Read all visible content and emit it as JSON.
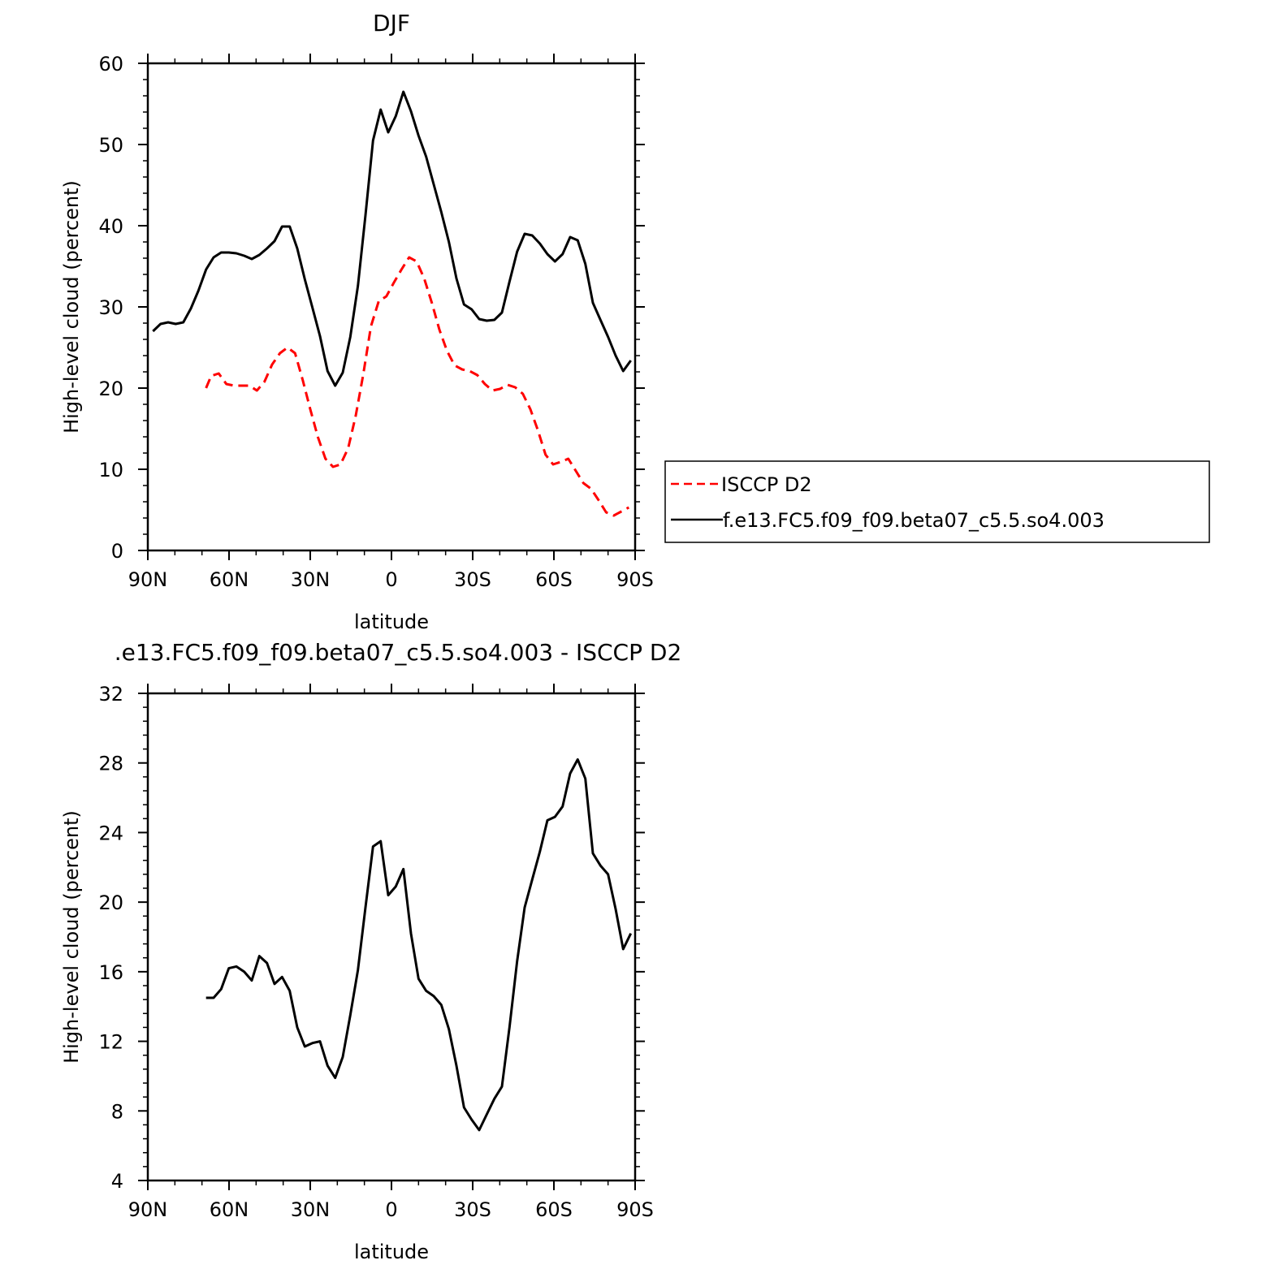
{
  "chart_data": [
    {
      "type": "line",
      "title": "DJF",
      "xlabel": "latitude",
      "ylabel": "High-level cloud (percent)",
      "xlim": [
        -90,
        90
      ],
      "ylim": [
        0,
        60
      ],
      "x_ticks": [
        {
          "value": -90,
          "label": "90N"
        },
        {
          "value": -60,
          "label": "60N"
        },
        {
          "value": -30,
          "label": "30N"
        },
        {
          "value": 0,
          "label": "0"
        },
        {
          "value": 30,
          "label": "30S"
        },
        {
          "value": 60,
          "label": "60S"
        },
        {
          "value": 90,
          "label": "90S"
        }
      ],
      "y_ticks": [
        {
          "value": 0,
          "label": "0"
        },
        {
          "value": 10,
          "label": "10"
        },
        {
          "value": 20,
          "label": "20"
        },
        {
          "value": 30,
          "label": "30"
        },
        {
          "value": 40,
          "label": "40"
        },
        {
          "value": 50,
          "label": "50"
        },
        {
          "value": 60,
          "label": "60"
        }
      ],
      "grid": false,
      "legend_position": "right",
      "series": [
        {
          "name": "ISCCP D2",
          "color": "#ff0000",
          "dash": true,
          "x": [
            -68.5,
            -66.6,
            -63.8,
            -61.0,
            -58.1,
            -55.3,
            -52.5,
            -49.7,
            -46.9,
            -44.1,
            -41.2,
            -38.4,
            -35.6,
            -32.8,
            -30.0,
            -27.2,
            -24.4,
            -21.6,
            -18.8,
            -16.0,
            -13.2,
            -10.4,
            -7.6,
            -4.7,
            -1.9,
            0.9,
            3.7,
            6.5,
            9.3,
            12.1,
            14.9,
            17.7,
            20.5,
            23.3,
            26.1,
            28.9,
            31.7,
            34.5,
            37.3,
            40.1,
            42.9,
            45.7,
            48.5,
            51.3,
            54.1,
            56.9,
            59.7,
            62.5,
            65.3,
            68.1,
            70.9,
            73.7,
            76.5,
            79.3,
            82.1,
            84.9,
            87.7
          ],
          "y": [
            20.0,
            21.5,
            21.8,
            20.5,
            20.3,
            20.3,
            20.3,
            19.7,
            20.8,
            22.9,
            24.3,
            25.0,
            24.3,
            21.0,
            17.4,
            14.0,
            11.3,
            10.3,
            10.6,
            12.6,
            16.6,
            21.7,
            27.6,
            30.7,
            31.3,
            33.0,
            34.6,
            36.1,
            35.6,
            33.5,
            30.5,
            27.2,
            24.6,
            22.8,
            22.3,
            22.1,
            21.6,
            20.5,
            19.7,
            19.9,
            20.4,
            20.1,
            19.3,
            17.4,
            14.8,
            11.8,
            10.6,
            10.9,
            11.3,
            9.8,
            8.3,
            7.6,
            6.2,
            4.7,
            4.3,
            4.8,
            5.3
          ]
        },
        {
          "name": "f.e13.FC5.f09_f09.beta07_c5.5.so4.003",
          "color": "#000000",
          "dash": false,
          "x": [
            -88.1,
            -85.3,
            -82.5,
            -79.7,
            -76.9,
            -74.1,
            -71.3,
            -68.5,
            -65.7,
            -62.9,
            -60.1,
            -57.3,
            -54.4,
            -51.6,
            -48.8,
            -46.0,
            -43.2,
            -40.4,
            -37.6,
            -34.8,
            -32.0,
            -29.2,
            -26.4,
            -23.6,
            -20.8,
            -18.0,
            -15.2,
            -12.4,
            -9.6,
            -6.8,
            -4.0,
            -1.2,
            1.6,
            4.4,
            7.2,
            10.0,
            12.8,
            15.6,
            18.4,
            21.2,
            24.0,
            26.8,
            29.6,
            32.4,
            35.2,
            38.0,
            40.8,
            43.6,
            46.4,
            49.2,
            52.0,
            54.8,
            57.6,
            60.4,
            63.2,
            66.0,
            68.8,
            71.6,
            74.4,
            77.2,
            80.0,
            82.8,
            85.6,
            88.4
          ],
          "y": [
            27.0,
            27.9,
            28.1,
            27.9,
            28.1,
            29.8,
            32.0,
            34.6,
            36.1,
            36.7,
            36.7,
            36.6,
            36.3,
            35.9,
            36.4,
            37.2,
            38.1,
            39.9,
            39.9,
            37.2,
            33.4,
            29.9,
            26.4,
            22.1,
            20.3,
            21.9,
            26.3,
            32.6,
            41.3,
            50.5,
            54.3,
            51.5,
            53.5,
            56.5,
            54.1,
            51.1,
            48.5,
            45.1,
            41.7,
            38.0,
            33.5,
            30.3,
            29.7,
            28.5,
            28.3,
            28.4,
            29.3,
            33.1,
            36.8,
            39.0,
            38.8,
            37.8,
            36.5,
            35.6,
            36.5,
            38.6,
            38.2,
            35.3,
            30.5,
            28.4,
            26.3,
            24.0,
            22.1,
            23.4
          ]
        }
      ]
    },
    {
      "type": "line",
      "title": ".e13.FC5.f09_f09.beta07_c5.5.so4.003 - ISCCP D2",
      "xlabel": "latitude",
      "ylabel": "High-level cloud (percent)",
      "xlim": [
        -90,
        90
      ],
      "ylim": [
        4,
        32
      ],
      "x_ticks": [
        {
          "value": -90,
          "label": "90N"
        },
        {
          "value": -60,
          "label": "60N"
        },
        {
          "value": -30,
          "label": "30N"
        },
        {
          "value": 0,
          "label": "0"
        },
        {
          "value": 30,
          "label": "30S"
        },
        {
          "value": 60,
          "label": "60S"
        },
        {
          "value": 90,
          "label": "90S"
        }
      ],
      "y_ticks": [
        {
          "value": 4,
          "label": "4"
        },
        {
          "value": 8,
          "label": "8"
        },
        {
          "value": 12,
          "label": "12"
        },
        {
          "value": 16,
          "label": "16"
        },
        {
          "value": 20,
          "label": "20"
        },
        {
          "value": 24,
          "label": "24"
        },
        {
          "value": 28,
          "label": "28"
        },
        {
          "value": 32,
          "label": "32"
        }
      ],
      "grid": false,
      "series": [
        {
          "color": "#000000",
          "dash": false,
          "x": [
            -68.5,
            -65.7,
            -62.9,
            -60.1,
            -57.3,
            -54.4,
            -51.6,
            -48.8,
            -46.0,
            -43.2,
            -40.4,
            -37.6,
            -34.8,
            -32.0,
            -29.2,
            -26.4,
            -23.6,
            -20.8,
            -18.0,
            -15.2,
            -12.4,
            -9.6,
            -6.8,
            -4.0,
            -1.2,
            1.6,
            4.4,
            7.2,
            10.0,
            12.8,
            15.6,
            18.4,
            21.2,
            24.0,
            26.8,
            29.6,
            32.4,
            35.2,
            38.0,
            40.8,
            43.6,
            46.4,
            49.2,
            52.0,
            54.8,
            57.6,
            60.4,
            63.2,
            66.0,
            68.8,
            71.6,
            74.4,
            77.2,
            80.0,
            82.8,
            85.6,
            88.4
          ],
          "y": [
            14.5,
            14.5,
            15.0,
            16.2,
            16.3,
            16.0,
            15.5,
            16.9,
            16.5,
            15.3,
            15.7,
            14.9,
            12.8,
            11.7,
            11.9,
            12.0,
            10.6,
            9.9,
            11.1,
            13.5,
            16.1,
            19.7,
            23.2,
            23.5,
            20.4,
            20.9,
            21.9,
            18.2,
            15.6,
            14.9,
            14.6,
            14.1,
            12.7,
            10.6,
            8.2,
            7.5,
            6.9,
            7.8,
            8.7,
            9.4,
            12.8,
            16.6,
            19.7,
            21.3,
            22.9,
            24.7,
            24.9,
            25.5,
            27.4,
            28.2,
            27.1,
            22.8,
            22.1,
            21.6,
            19.6,
            17.3,
            18.2
          ]
        }
      ]
    }
  ]
}
